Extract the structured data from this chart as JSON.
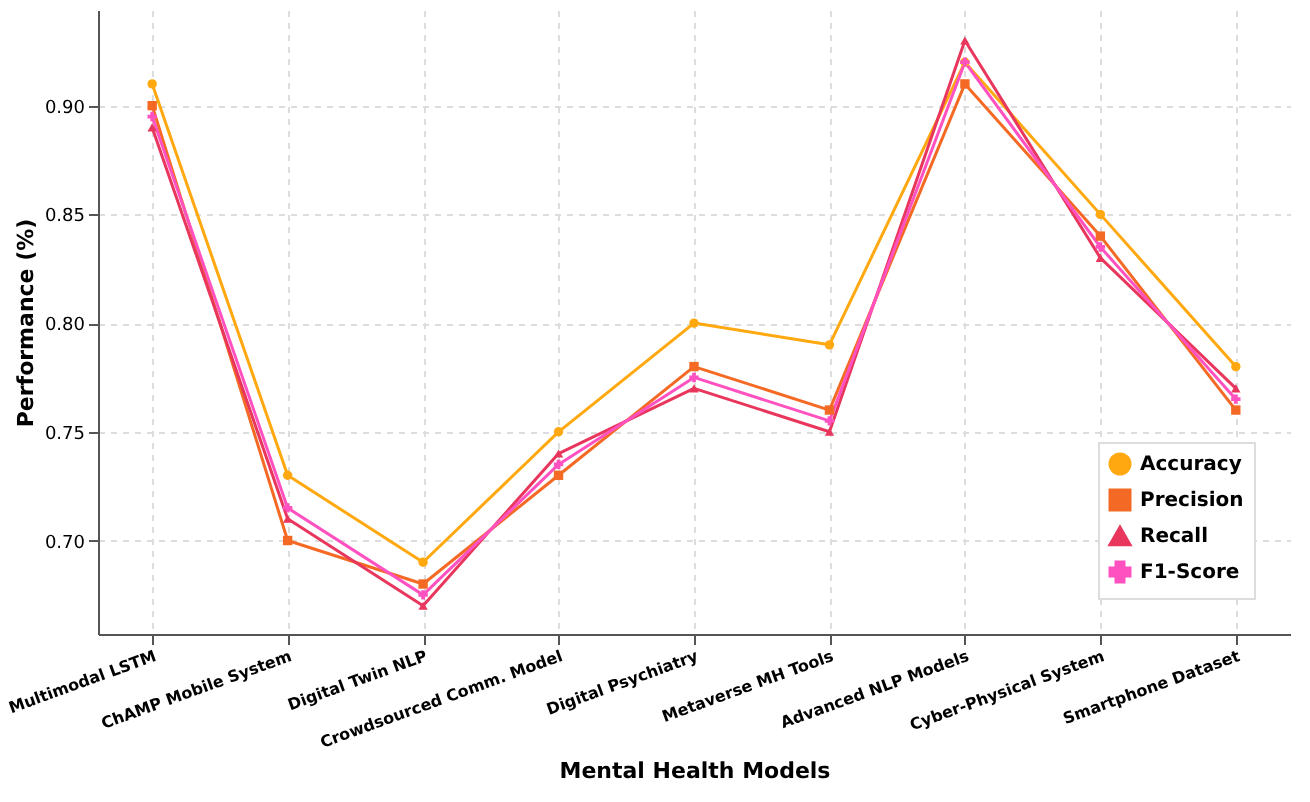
{
  "chart_data": {
    "type": "line",
    "xlabel": "Mental Health Models",
    "ylabel": "Performance (%)",
    "categories": [
      "Multimodal LSTM",
      "ChAMP Mobile System",
      "Digital Twin NLP",
      "Crowdsourced Comm. Model",
      "Digital Psychiatry",
      "Metaverse MH Tools",
      "Advanced NLP Models",
      "Cyber-Physical System",
      "Smartphone Dataset"
    ],
    "series": [
      {
        "name": "Accuracy",
        "color": "#ffa80f",
        "marker": "circle",
        "values": [
          0.91,
          0.73,
          0.69,
          0.75,
          0.8,
          0.79,
          0.92,
          0.85,
          0.78
        ]
      },
      {
        "name": "Precision",
        "color": "#f46a25",
        "marker": "square",
        "values": [
          0.9,
          0.7,
          0.68,
          0.73,
          0.78,
          0.76,
          0.91,
          0.84,
          0.76
        ]
      },
      {
        "name": "Recall",
        "color": "#e8365d",
        "marker": "triangle",
        "values": [
          0.89,
          0.71,
          0.67,
          0.74,
          0.77,
          0.75,
          0.93,
          0.83,
          0.77
        ]
      },
      {
        "name": "F1-Score",
        "color": "#ff52c0",
        "marker": "cross",
        "values": [
          0.895,
          0.715,
          0.675,
          0.735,
          0.775,
          0.755,
          0.92,
          0.835,
          0.765
        ]
      }
    ],
    "ylim": [
      0.657,
      0.944
    ],
    "yticks": [
      {
        "value": 0.7,
        "label": "0.70"
      },
      0.75,
      {
        "value": 0.8,
        "label": "0.80"
      },
      0.85,
      {
        "value": 0.9,
        "label": "0.90"
      }
    ],
    "grid": true,
    "legend": "bottom right"
  }
}
